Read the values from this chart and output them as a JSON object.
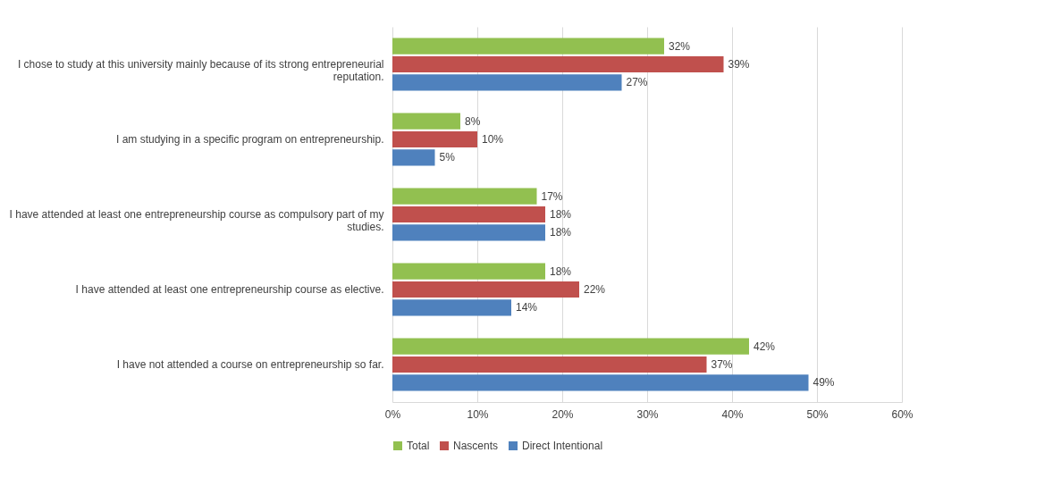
{
  "chart_data": {
    "type": "bar",
    "orientation": "horizontal",
    "categories": [
      "I chose to study at this university mainly because of its strong entrepreneurial reputation.",
      "I am studying in a specific program on entrepreneurship.",
      "I have attended at least one entrepreneurship course as compulsory part of my studies.",
      "I have attended at least one entrepreneurship course as elective.",
      "I have not attended a course on entrepreneurship so far."
    ],
    "series": [
      {
        "name": "Total",
        "color": "#92c050",
        "values": [
          32,
          8,
          17,
          18,
          42
        ],
        "value_labels": [
          "32%",
          "8%",
          "17%",
          "18%",
          "42%"
        ]
      },
      {
        "name": "Nascents",
        "color": "#c0504d",
        "values": [
          39,
          10,
          18,
          22,
          37
        ],
        "value_labels": [
          "39%",
          "10%",
          "18%",
          "22%",
          "37%"
        ]
      },
      {
        "name": "Direct Intentional",
        "color": "#4f81bd",
        "values": [
          27,
          5,
          18,
          14,
          49
        ],
        "value_labels": [
          "27%",
          "5%",
          "18%",
          "14%",
          "49%"
        ]
      }
    ],
    "xlim": [
      0,
      60
    ],
    "xticks": [
      {
        "value": 0,
        "label": "0%"
      },
      {
        "value": 10,
        "label": "10%"
      },
      {
        "value": 20,
        "label": "20%"
      },
      {
        "value": 30,
        "label": "30%"
      },
      {
        "value": 40,
        "label": "40%"
      },
      {
        "value": 50,
        "label": "50%"
      },
      {
        "value": 60,
        "label": "60%"
      }
    ],
    "grid": "x",
    "legend": "bottom"
  }
}
